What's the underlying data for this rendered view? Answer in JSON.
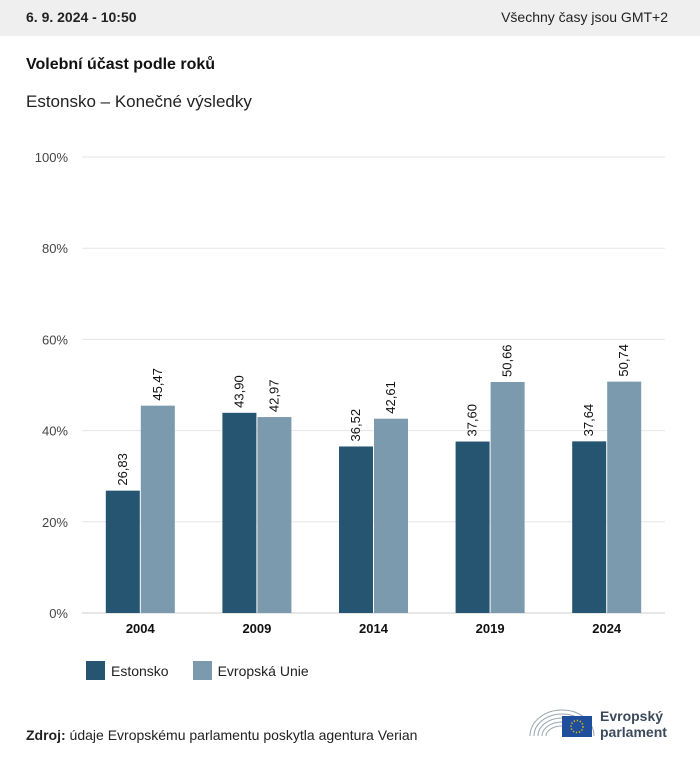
{
  "header": {
    "date": "6. 9. 2024 - 10:50",
    "timezone": "Všechny časy jsou GMT+2"
  },
  "title": "Volební účast podle roků",
  "subtitle": "Estonsko – Konečné výsledky",
  "colors": {
    "estonsko": "#265571",
    "eu": "#7b9aae",
    "grid": "#e6e6e6",
    "axis": "#cfcfcf"
  },
  "chart_data": {
    "type": "bar",
    "categories": [
      "2004",
      "2009",
      "2014",
      "2019",
      "2024"
    ],
    "series": [
      {
        "name": "Estonsko",
        "values": [
          26.83,
          43.9,
          36.52,
          37.6,
          37.64
        ],
        "labels": [
          "26,83",
          "43,90",
          "36,52",
          "37,60",
          "37,64"
        ]
      },
      {
        "name": "Evropská Unie",
        "values": [
          45.47,
          42.97,
          42.61,
          50.66,
          50.74
        ],
        "labels": [
          "45,47",
          "42,97",
          "42,61",
          "50,66",
          "50,74"
        ]
      }
    ],
    "ylim": [
      0,
      100
    ],
    "yticks": [
      "0%",
      "20%",
      "40%",
      "60%",
      "80%",
      "100%"
    ],
    "grid": true,
    "legend": "bottom-left"
  },
  "legend": {
    "items": [
      "Estonsko",
      "Evropská Unie"
    ]
  },
  "source": {
    "label": "Zdroj:",
    "text": "údaje Evropskému parlamentu poskytla agentura Verian"
  },
  "logo": {
    "line1": "Evropský",
    "line2": "parlament"
  }
}
